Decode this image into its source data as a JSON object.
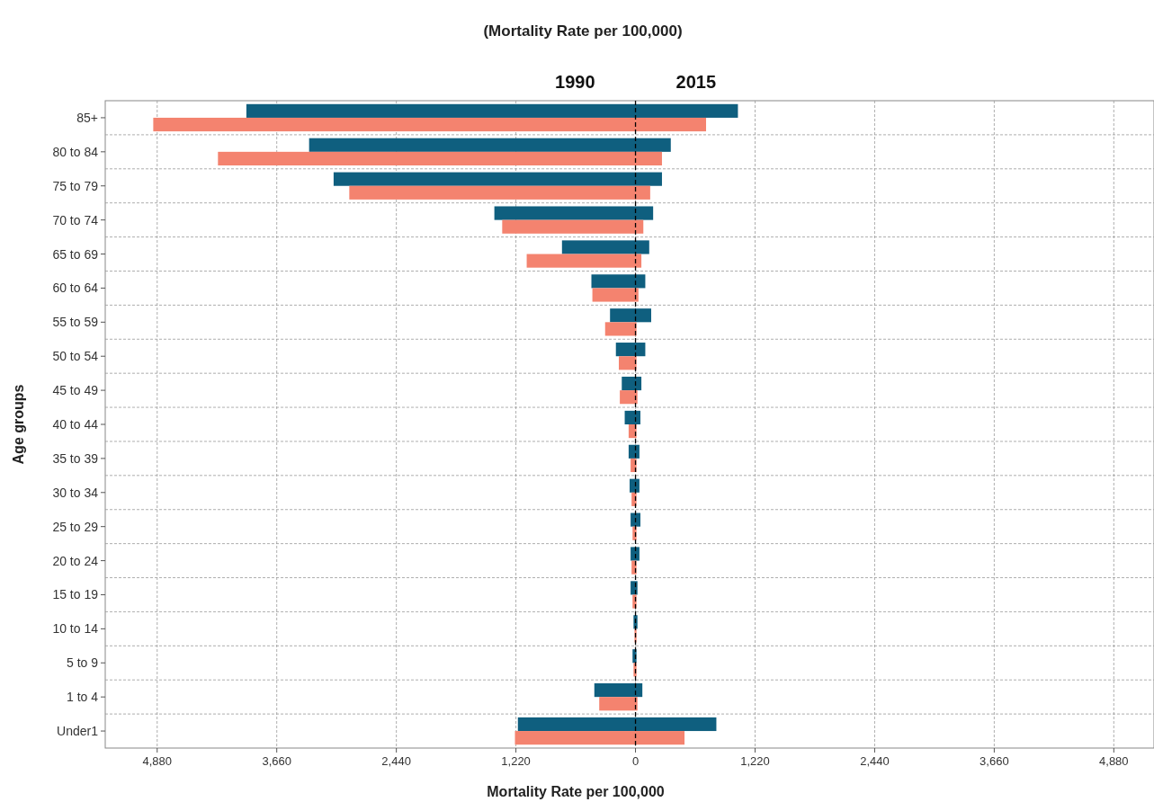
{
  "chart_data": {
    "type": "bar",
    "orientation": "horizontal",
    "title": "(Mortality Rate per 100,000)",
    "xlabel": "Mortality Rate per 100,000",
    "ylabel": "Age groups",
    "categories": [
      "85+",
      "80 to 84",
      "75 to 79",
      "70 to 74",
      "65 to 69",
      "60 to 64",
      "55 to 59",
      "50 to 54",
      "45 to 49",
      "40 to 44",
      "35 to 39",
      "30 to 34",
      "25 to 29",
      "20 to 24",
      "15 to 19",
      "10 to 14",
      "5 to 9",
      "1 to 4",
      "Under1"
    ],
    "series": [
      {
        "color": "#0f5f7f",
        "base": [
          -3970,
          -3330,
          -3080,
          -1440,
          -750,
          -450,
          -260,
          -200,
          -140,
          -110,
          -70,
          -60,
          -50,
          -50,
          -50,
          -20,
          -30,
          -420,
          -1200
        ],
        "values": [
          5015,
          3690,
          3350,
          1620,
          890,
          550,
          420,
          300,
          200,
          160,
          110,
          100,
          100,
          90,
          70,
          40,
          40,
          490,
          2025
        ]
      },
      {
        "color": "#f4836f",
        "base": [
          -4920,
          -4260,
          -2920,
          -1360,
          -1110,
          -440,
          -310,
          -170,
          -160,
          -70,
          -50,
          -40,
          -30,
          -40,
          -30,
          -10,
          -20,
          -370,
          -1230
        ],
        "values": [
          5640,
          4530,
          3070,
          1440,
          1170,
          470,
          320,
          180,
          180,
          80,
          60,
          50,
          40,
          50,
          40,
          20,
          30,
          390,
          1730
        ]
      }
    ],
    "xlim": [
      -5410,
      5290
    ],
    "xticks": [
      {
        "value": -4880,
        "label": "4,880"
      },
      {
        "value": -3660,
        "label": "3,660"
      },
      {
        "value": -2440,
        "label": "2,440"
      },
      {
        "value": -1220,
        "label": "1,220"
      },
      0,
      {
        "value": 1220,
        "label": "1,220"
      },
      {
        "value": 2440,
        "label": "2,440"
      },
      {
        "value": 3660,
        "label": "3,660"
      },
      {
        "value": 4880,
        "label": "4,880"
      }
    ],
    "ref_lines": [
      {
        "axis": "x",
        "value": 0,
        "line_style": "dashed",
        "color": "#000000"
      }
    ],
    "annotations": [
      "1990",
      "2015"
    ],
    "grid": true
  }
}
